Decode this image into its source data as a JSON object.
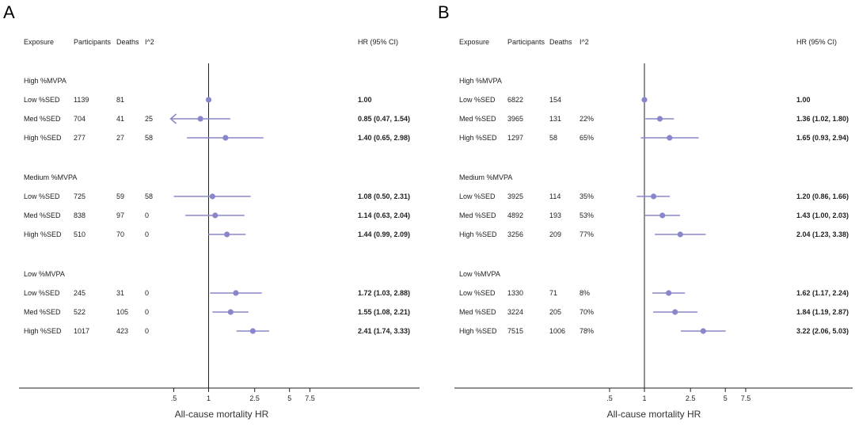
{
  "panels": [
    {
      "letter": "A",
      "headers": {
        "exposure": "Exposure",
        "participants": "Participants",
        "deaths": "Deaths",
        "i2": "I^2",
        "hr": "HR (95% CI)"
      },
      "groups": [
        {
          "label": "High %MVPA",
          "rows": [
            {
              "exposure": "Low %SED",
              "participants": "1139",
              "deaths": "81",
              "i2": "",
              "hr_text": "1.00"
            },
            {
              "exposure": "Med %SED",
              "participants": "704",
              "deaths": "41",
              "i2": "25",
              "hr_text": "0.85 (0.47, 1.54)"
            },
            {
              "exposure": "High %SED",
              "participants": "277",
              "deaths": "27",
              "i2": "58",
              "hr_text": "1.40 (0.65, 2.98)"
            }
          ]
        },
        {
          "label": "Medium %MVPA",
          "rows": [
            {
              "exposure": "Low %SED",
              "participants": "725",
              "deaths": "59",
              "i2": "58",
              "hr_text": "1.08 (0.50, 2.31)"
            },
            {
              "exposure": "Med %SED",
              "participants": "838",
              "deaths": "97",
              "i2": "0",
              "hr_text": "1.14 (0.63, 2.04)"
            },
            {
              "exposure": "High %SED",
              "participants": "510",
              "deaths": "70",
              "i2": "0",
              "hr_text": "1.44 (0.99, 2.09)"
            }
          ]
        },
        {
          "label": "Low %MVPA",
          "rows": [
            {
              "exposure": "Low %SED",
              "participants": "245",
              "deaths": "31",
              "i2": "0",
              "hr_text": "1.72 (1.03, 2.88)"
            },
            {
              "exposure": "Med %SED",
              "participants": "522",
              "deaths": "105",
              "i2": "0",
              "hr_text": "1.55 (1.08, 2.21)"
            },
            {
              "exposure": "High %SED",
              "participants": "1017",
              "deaths": "423",
              "i2": "0",
              "hr_text": "2.41 (1.74, 3.33)"
            }
          ]
        }
      ],
      "axis_label": "All-cause mortality HR",
      "ticks": [
        ".5",
        "1",
        "2.5",
        "5",
        "7.5"
      ]
    },
    {
      "letter": "B",
      "headers": {
        "exposure": "Exposure",
        "participants": "Participants",
        "deaths": "Deaths",
        "i2": "I^2",
        "hr": "HR (95% CI)"
      },
      "groups": [
        {
          "label": "High %MVPA",
          "rows": [
            {
              "exposure": "Low %SED",
              "participants": "6822",
              "deaths": "154",
              "i2": "",
              "hr_text": "1.00"
            },
            {
              "exposure": "Med %SED",
              "participants": "3965",
              "deaths": "131",
              "i2": "22%",
              "hr_text": "1.36 (1.02, 1.80)"
            },
            {
              "exposure": "High %SED",
              "participants": "1297",
              "deaths": "58",
              "i2": "65%",
              "hr_text": "1.65 (0.93, 2.94)"
            }
          ]
        },
        {
          "label": "Medium %MVPA",
          "rows": [
            {
              "exposure": "Low %SED",
              "participants": "3925",
              "deaths": "114",
              "i2": "35%",
              "hr_text": "1.20 (0.86, 1.66)"
            },
            {
              "exposure": "Med %SED",
              "participants": "4892",
              "deaths": "193",
              "i2": "53%",
              "hr_text": "1.43 (1.00, 2.03)"
            },
            {
              "exposure": "High %SED",
              "participants": "3256",
              "deaths": "209",
              "i2": "77%",
              "hr_text": "2.04 (1.23, 3.38)"
            }
          ]
        },
        {
          "label": "Low %MVPA",
          "rows": [
            {
              "exposure": "Low %SED",
              "participants": "1330",
              "deaths": "71",
              "i2": "8%",
              "hr_text": "1.62 (1.17, 2.24)"
            },
            {
              "exposure": "Med %SED",
              "participants": "3224",
              "deaths": "205",
              "i2": "70%",
              "hr_text": "1.84 (1.19, 2.87)"
            },
            {
              "exposure": "High %SED",
              "participants": "7515",
              "deaths": "1006",
              "i2": "78%",
              "hr_text": "3.22 (2.06, 5.03)"
            }
          ]
        }
      ],
      "axis_label": "All-cause mortality HR",
      "ticks": [
        ".5",
        "1",
        "2.5",
        "5",
        "7.5"
      ]
    }
  ],
  "chart_data": [
    {
      "type": "forest",
      "title": "A",
      "xlabel": "All-cause mortality HR",
      "ref_line": 1,
      "color": "#8a86cc",
      "series": [
        {
          "group": "High %MVPA",
          "label": "Low %SED",
          "hr": 1.0,
          "lo": 1.0,
          "hi": 1.0
        },
        {
          "group": "High %MVPA",
          "label": "Med %SED",
          "hr": 0.85,
          "lo": 0.47,
          "hi": 1.54,
          "arrow_left": true
        },
        {
          "group": "High %MVPA",
          "label": "High %SED",
          "hr": 1.4,
          "lo": 0.65,
          "hi": 2.98
        },
        {
          "group": "Medium %MVPA",
          "label": "Low %SED",
          "hr": 1.08,
          "lo": 0.5,
          "hi": 2.31
        },
        {
          "group": "Medium %MVPA",
          "label": "Med %SED",
          "hr": 1.14,
          "lo": 0.63,
          "hi": 2.04
        },
        {
          "group": "Medium %MVPA",
          "label": "High %SED",
          "hr": 1.44,
          "lo": 0.99,
          "hi": 2.09
        },
        {
          "group": "Low %MVPA",
          "label": "Low %SED",
          "hr": 1.72,
          "lo": 1.03,
          "hi": 2.88
        },
        {
          "group": "Low %MVPA",
          "label": "Med %SED",
          "hr": 1.55,
          "lo": 1.08,
          "hi": 2.21
        },
        {
          "group": "Low %MVPA",
          "label": "High %SED",
          "hr": 2.41,
          "lo": 1.74,
          "hi": 3.33
        }
      ]
    },
    {
      "type": "forest",
      "title": "B",
      "xlabel": "All-cause mortality HR",
      "ref_line": 1,
      "color": "#8a86cc",
      "series": [
        {
          "group": "High %MVPA",
          "label": "Low %SED",
          "hr": 1.0,
          "lo": 1.0,
          "hi": 1.0
        },
        {
          "group": "High %MVPA",
          "label": "Med %SED",
          "hr": 1.36,
          "lo": 1.02,
          "hi": 1.8
        },
        {
          "group": "High %MVPA",
          "label": "High %SED",
          "hr": 1.65,
          "lo": 0.93,
          "hi": 2.94
        },
        {
          "group": "Medium %MVPA",
          "label": "Low %SED",
          "hr": 1.2,
          "lo": 0.86,
          "hi": 1.66
        },
        {
          "group": "Medium %MVPA",
          "label": "Med %SED",
          "hr": 1.43,
          "lo": 1.0,
          "hi": 2.03
        },
        {
          "group": "Medium %MVPA",
          "label": "High %SED",
          "hr": 2.04,
          "lo": 1.23,
          "hi": 3.38
        },
        {
          "group": "Low %MVPA",
          "label": "Low %SED",
          "hr": 1.62,
          "lo": 1.17,
          "hi": 2.24
        },
        {
          "group": "Low %MVPA",
          "label": "Med %SED",
          "hr": 1.84,
          "lo": 1.19,
          "hi": 2.87
        },
        {
          "group": "Low %MVPA",
          "label": "High %SED",
          "hr": 3.22,
          "lo": 2.06,
          "hi": 5.03
        }
      ]
    }
  ]
}
